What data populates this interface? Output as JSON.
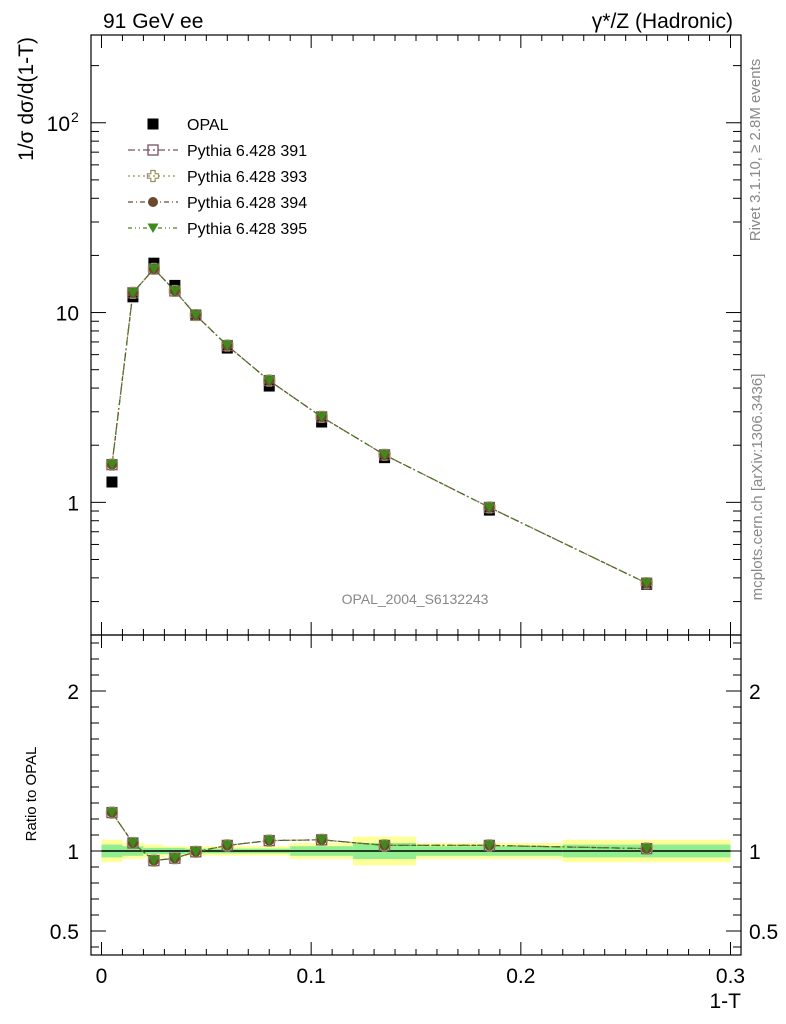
{
  "header": {
    "left": "91 GeV ee",
    "right": "γ*/Z (Hadronic)"
  },
  "side": {
    "rivet": "Rivet 3.1.10, ≥ 2.8M events",
    "mcplots": "mcplots.cern.ch [arXiv:1306.3436]"
  },
  "analysis_label": "OPAL_2004_S6132243",
  "colors": {
    "opal": "#000000",
    "p391": "#7b4f66",
    "p393": "#9a8f5a",
    "p394": "#6a4a2e",
    "p395": "#3f8a1c",
    "band_inner": "#90ee90",
    "band_outer": "#ffff99"
  },
  "chart_data": [
    {
      "type": "scatter",
      "scale": "log",
      "ylabel": "1/σ dσ/d(1-T)",
      "xlim": [
        -0.005,
        0.305
      ],
      "ylim": [
        0.2,
        290
      ],
      "y_ticks": [
        {
          "value": 1,
          "label": "1"
        },
        {
          "value": 10,
          "label": "10"
        },
        {
          "value": 100,
          "label": "10",
          "sup": "2"
        }
      ],
      "x": [
        0.005,
        0.015,
        0.025,
        0.035,
        0.045,
        0.06,
        0.08,
        0.105,
        0.135,
        0.185,
        0.26
      ],
      "series": [
        {
          "name": "OPAL",
          "key": "opal",
          "marker": "square",
          "values": [
            1.28,
            12.1,
            18.2,
            13.9,
            9.7,
            6.5,
            4.1,
            2.65,
            1.72,
            0.91,
            0.37
          ]
        },
        {
          "name": "Pythia 6.428 391",
          "key": "p391",
          "marker": "open-square",
          "values": [
            1.58,
            12.7,
            17.0,
            13.0,
            9.7,
            6.7,
            4.38,
            2.82,
            1.78,
            0.94,
            0.375
          ]
        },
        {
          "name": "Pythia 6.428 393",
          "key": "p393",
          "marker": "open-cross",
          "values": [
            1.58,
            12.7,
            17.0,
            13.0,
            9.7,
            6.7,
            4.38,
            2.82,
            1.78,
            0.94,
            0.375
          ]
        },
        {
          "name": "Pythia 6.428 394",
          "key": "p394",
          "marker": "circle",
          "values": [
            1.58,
            12.7,
            17.0,
            13.0,
            9.7,
            6.7,
            4.38,
            2.82,
            1.78,
            0.94,
            0.375
          ]
        },
        {
          "name": "Pythia 6.428 395",
          "key": "p395",
          "marker": "triangle-down",
          "values": [
            1.58,
            12.7,
            17.0,
            13.0,
            9.7,
            6.7,
            4.38,
            2.82,
            1.78,
            0.94,
            0.375
          ]
        }
      ]
    },
    {
      "type": "scatter",
      "scale": "linear",
      "ylabel": "Ratio to OPAL",
      "xlabel": "1-T",
      "xlim": [
        -0.005,
        0.305
      ],
      "ylim": [
        0.35,
        2.35
      ],
      "x_ticks": [
        {
          "value": 0,
          "label": "0"
        },
        {
          "value": 0.1,
          "label": "0.1"
        },
        {
          "value": 0.2,
          "label": "0.2"
        },
        {
          "value": 0.3,
          "label": "0.3"
        }
      ],
      "y_ticks": [
        {
          "value": 0.5,
          "label": "0.5"
        },
        {
          "value": 1,
          "label": "1"
        },
        {
          "value": 2,
          "label": "2"
        }
      ],
      "x": [
        0.005,
        0.015,
        0.025,
        0.035,
        0.045,
        0.06,
        0.08,
        0.105,
        0.135,
        0.185,
        0.26
      ],
      "bins": [
        {
          "lo": 0.0,
          "hi": 0.01,
          "inner": 0.04,
          "outer": 0.07
        },
        {
          "lo": 0.01,
          "hi": 0.02,
          "inner": 0.03,
          "outer": 0.05
        },
        {
          "lo": 0.02,
          "hi": 0.03,
          "inner": 0.02,
          "outer": 0.04
        },
        {
          "lo": 0.03,
          "hi": 0.04,
          "inner": 0.02,
          "outer": 0.03
        },
        {
          "lo": 0.04,
          "hi": 0.05,
          "inner": 0.015,
          "outer": 0.03
        },
        {
          "lo": 0.05,
          "hi": 0.07,
          "inner": 0.015,
          "outer": 0.03
        },
        {
          "lo": 0.07,
          "hi": 0.09,
          "inner": 0.015,
          "outer": 0.03
        },
        {
          "lo": 0.09,
          "hi": 0.12,
          "inner": 0.03,
          "outer": 0.05
        },
        {
          "lo": 0.12,
          "hi": 0.15,
          "inner": 0.05,
          "outer": 0.09
        },
        {
          "lo": 0.15,
          "hi": 0.22,
          "inner": 0.03,
          "outer": 0.05
        },
        {
          "lo": 0.22,
          "hi": 0.3,
          "inner": 0.04,
          "outer": 0.07
        }
      ],
      "series": [
        {
          "name": "Pythia 6.428 391",
          "key": "p391",
          "marker": "open-square",
          "values": [
            1.24,
            1.05,
            0.94,
            0.955,
            0.995,
            1.035,
            1.065,
            1.07,
            1.035,
            1.035,
            1.015
          ]
        },
        {
          "name": "Pythia 6.428 393",
          "key": "p393",
          "marker": "open-cross",
          "values": [
            1.24,
            1.05,
            0.94,
            0.955,
            0.995,
            1.035,
            1.065,
            1.07,
            1.035,
            1.035,
            1.015
          ]
        },
        {
          "name": "Pythia 6.428 394",
          "key": "p394",
          "marker": "circle",
          "values": [
            1.24,
            1.05,
            0.94,
            0.955,
            0.995,
            1.035,
            1.065,
            1.07,
            1.035,
            1.035,
            1.015
          ]
        },
        {
          "name": "Pythia 6.428 395",
          "key": "p395",
          "marker": "triangle-down",
          "values": [
            1.24,
            1.05,
            0.94,
            0.955,
            0.995,
            1.035,
            1.065,
            1.07,
            1.035,
            1.035,
            1.015
          ]
        }
      ]
    }
  ]
}
